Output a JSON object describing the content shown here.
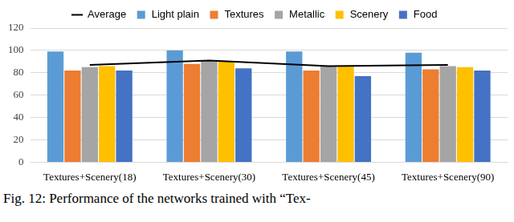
{
  "chart_data": {
    "type": "bar",
    "categories": [
      "Textures+Scenery(18)",
      "Textures+Scenery(30)",
      "Textures+Scenery(45)",
      "Textures+Scenery(90)"
    ],
    "series": [
      {
        "name": "Light plain",
        "color": "#5b9bd5",
        "values": [
          99,
          100,
          99,
          98
        ]
      },
      {
        "name": "Textures",
        "color": "#ed7d31",
        "values": [
          82,
          88,
          82,
          83
        ]
      },
      {
        "name": "Metallic",
        "color": "#a5a5a5",
        "values": [
          85,
          91,
          86,
          86
        ]
      },
      {
        "name": "Scenery",
        "color": "#ffc000",
        "values": [
          86,
          90,
          86,
          85
        ]
      },
      {
        "name": "Food",
        "color": "#4472c4",
        "values": [
          82,
          84,
          77,
          82
        ]
      },
      {
        "name": "Average",
        "color": "#000000",
        "type": "line",
        "values": [
          87,
          91,
          86,
          87
        ]
      }
    ],
    "ylim": [
      0,
      120
    ],
    "yticks": [
      0,
      20,
      40,
      60,
      80,
      100,
      120
    ],
    "grid": true,
    "legend": "top",
    "caption": "Fig. 12: Performance of the networks trained with “Tex-"
  }
}
